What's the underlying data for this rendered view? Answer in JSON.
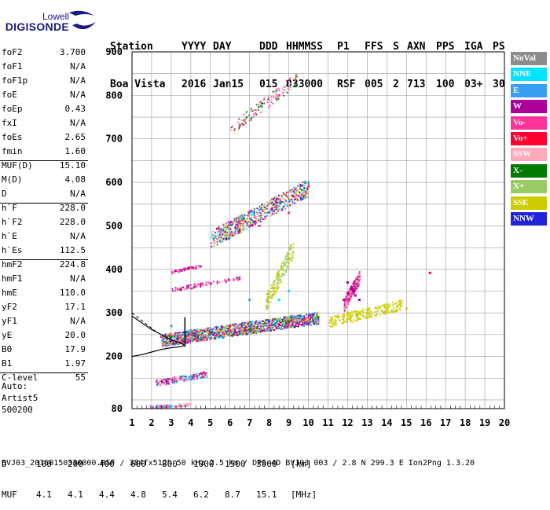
{
  "logo": {
    "brand": "Lowell",
    "name": "DIGISONDE"
  },
  "header": {
    "line1": [
      "Station",
      "YYYY",
      "DAY",
      "DDD",
      "HHMMSS",
      "P1",
      "FFS",
      "S",
      "AXN",
      "PPS",
      "IGA",
      "PS"
    ],
    "line2": [
      "Boa Vista",
      "2016",
      "Jan15",
      "015",
      "033000",
      "RSF",
      "005",
      "2",
      "713",
      "100",
      "03+",
      "30"
    ]
  },
  "params": [
    {
      "label": "foF2",
      "value": "3.700"
    },
    {
      "label": "foF1",
      "value": "N/A"
    },
    {
      "label": "foF1p",
      "value": "N/A"
    },
    {
      "label": "foE",
      "value": "N/A"
    },
    {
      "label": "foEp",
      "value": "0.43"
    },
    {
      "label": "fxI",
      "value": "N/A"
    },
    {
      "label": "foEs",
      "value": "2.65"
    },
    {
      "label": "fmin",
      "value": "1.60"
    },
    {
      "label": "MUF(D)",
      "value": "15.10"
    },
    {
      "label": "M(D)",
      "value": "4.08"
    },
    {
      "label": "D",
      "value": "N/A"
    },
    {
      "label": "h`F",
      "value": "228.0"
    },
    {
      "label": "h`F2",
      "value": "228.0"
    },
    {
      "label": "h`E",
      "value": "N/A"
    },
    {
      "label": "h`Es",
      "value": "112.5"
    },
    {
      "label": "hmF2",
      "value": "224.8"
    },
    {
      "label": "hmF1",
      "value": "N/A"
    },
    {
      "label": "hmE",
      "value": "110.0"
    },
    {
      "label": "yF2",
      "value": "17.1"
    },
    {
      "label": "yF1",
      "value": "N/A"
    },
    {
      "label": "yE",
      "value": "20.0"
    },
    {
      "label": "B0",
      "value": "17.9"
    },
    {
      "label": "B1",
      "value": "1.97"
    },
    {
      "label": "C-level",
      "value": "55"
    }
  ],
  "auto": [
    "Auto:",
    "Artist5",
    "500200"
  ],
  "legend": [
    {
      "label": "NoVal",
      "color": "#8c8c8c"
    },
    {
      "label": "NNE",
      "color": "#00e5ff"
    },
    {
      "label": "E",
      "color": "#39a0f0"
    },
    {
      "label": "W",
      "color": "#aa0099"
    },
    {
      "label": "Vo-",
      "color": "#ff3399"
    },
    {
      "label": "Vo+",
      "color": "#ff0033"
    },
    {
      "label": "SSW",
      "color": "#ffaabb"
    },
    {
      "label": "X-",
      "color": "#007a00"
    },
    {
      "label": "X+",
      "color": "#99cc66"
    },
    {
      "label": "SSE",
      "color": "#cccc00"
    },
    {
      "label": "NNW",
      "color": "#2222dd"
    }
  ],
  "muf_table": {
    "d_label": "D",
    "d_values": [
      "100",
      "200",
      "400",
      "600",
      "800",
      "1000",
      "1500",
      "3000"
    ],
    "d_unit": "[km]",
    "m_label": "MUF",
    "m_values": [
      "4.1",
      "4.1",
      "4.4",
      "4.8",
      "5.4",
      "6.2",
      "8.7",
      "15.1"
    ],
    "m_unit": "[MHz]"
  },
  "footer": "BVJ03_20160150330000.RSF / 384fx512h 50 kHz 2.5 km / DPS-4D BVJ03 003 / 2.8 N 299.3 E Ion2Png 1.3.20",
  "chart_data": {
    "type": "scatter",
    "xlim": [
      1,
      20
    ],
    "ylim": [
      80,
      900
    ],
    "xticks": [
      "1",
      "2",
      "3",
      "4",
      "5",
      "6",
      "7",
      "8",
      "9",
      "10",
      "11",
      "12",
      "13",
      "14",
      "15",
      "16",
      "17",
      "18",
      "19",
      "20"
    ],
    "yticks": [
      "80",
      "200",
      "300",
      "400",
      "500",
      "600",
      "700",
      "800",
      "900"
    ],
    "ytick_values": [
      80,
      200,
      300,
      400,
      500,
      600,
      700,
      800,
      900
    ],
    "grid": true,
    "series": [
      {
        "name": "W",
        "color": "#aa0099",
        "x": [
          11.8,
          12.0,
          12.2,
          12.4,
          12.6,
          12.0,
          12.3
        ],
        "y": [
          330,
          345,
          360,
          340,
          330,
          370,
          350
        ]
      },
      {
        "name": "SSE",
        "color": "#cccc00",
        "x": [
          11.5,
          12.0,
          12.5,
          13.0,
          14.5,
          15.0
        ],
        "y": [
          290,
          300,
          295,
          300,
          305,
          310
        ]
      },
      {
        "name": "Vo-",
        "color": "#ff3399",
        "x": [
          2.5,
          4.0,
          6.0,
          8.0,
          10.0,
          6.0,
          7.5,
          9.0,
          10.0,
          3.5,
          6.5,
          8.5
        ],
        "y": [
          245,
          250,
          260,
          270,
          280,
          480,
          500,
          530,
          590,
          150,
          730,
          800
        ]
      },
      {
        "name": "X-",
        "color": "#007a00",
        "x": [
          3.0,
          5.0,
          7.0,
          9.0,
          10.5
        ],
        "y": [
          245,
          255,
          262,
          280,
          290
        ]
      },
      {
        "name": "E",
        "color": "#39a0f0",
        "x": [
          3.0,
          4.0,
          5.5,
          7.0
        ],
        "y": [
          270,
          260,
          490,
          330
        ]
      },
      {
        "name": "NNE",
        "color": "#00e5ff",
        "x": [
          8.5,
          9.0,
          3.0
        ],
        "y": [
          330,
          350,
          85
        ]
      },
      {
        "name": "Vo+",
        "color": "#ff0033",
        "x": [
          16.2
        ],
        "y": [
          392
        ]
      }
    ],
    "profile": {
      "x": [
        1.0,
        1.5,
        2.0,
        2.5,
        3.0,
        3.4,
        3.6,
        3.65,
        3.6,
        3.4,
        3.0,
        2.5,
        2.0,
        1.5,
        1.0
      ],
      "y": [
        200,
        204,
        210,
        216,
        220,
        222,
        224,
        226,
        228,
        232,
        238,
        250,
        262,
        277,
        293
      ]
    }
  }
}
